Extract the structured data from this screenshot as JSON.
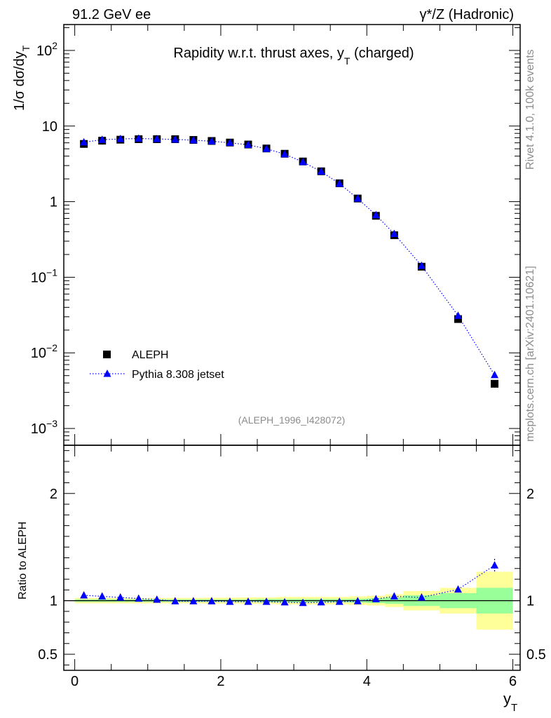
{
  "header": {
    "left": "91.2 GeV ee",
    "right": "γ*/Z (Hadronic)"
  },
  "side": {
    "rivet": "Rivet 4.1.0,  100k events",
    "mcplots": "mcplots.cern.ch [arXiv:2401.10621]"
  },
  "colors": {
    "data": "#000000",
    "mc": "#0000ff",
    "band_inner": "#99ff99",
    "band_outer": "#ffff99"
  },
  "chart_data": [
    {
      "type": "scatter",
      "title": "Rapidity w.r.t. thrust axes, y_T (charged)",
      "title_main": "Rapidity w.r.t. thrust axes, y",
      "title_sub": "T",
      "title_tail": " (charged)",
      "ylabel": "1/σ  dσ/dy_T",
      "ylabel_main": "1/σ  dσ/dy",
      "ylabel_sub": "T",
      "yscale": "log",
      "ylim": [
        0.0006,
        220
      ],
      "xlim": [
        -0.15,
        6.1
      ],
      "watermark": "(ALEPH_1996_I428072)",
      "yticks": [
        {
          "v": 100,
          "base": "10",
          "exp": "2",
          "plain": null
        },
        {
          "v": 10,
          "base": null,
          "exp": null,
          "plain": "10"
        },
        {
          "v": 1,
          "base": null,
          "exp": null,
          "plain": "1"
        },
        {
          "v": 0.1,
          "base": "10",
          "exp": "−1",
          "plain": null
        },
        {
          "v": 0.01,
          "base": "10",
          "exp": "−2",
          "plain": null
        },
        {
          "v": 0.001,
          "base": "10",
          "exp": "−3",
          "plain": null
        }
      ],
      "legend": {
        "position": "lower-left",
        "entries": [
          "ALEPH",
          "Pythia 8.308 jetset"
        ]
      },
      "x": [
        0.125,
        0.375,
        0.625,
        0.875,
        1.125,
        1.375,
        1.625,
        1.875,
        2.125,
        2.375,
        2.625,
        2.875,
        3.125,
        3.375,
        3.625,
        3.875,
        4.125,
        4.375,
        4.75,
        5.25,
        5.75
      ],
      "series": [
        {
          "name": "ALEPH",
          "marker": "square",
          "values": [
            5.8,
            6.4,
            6.6,
            6.7,
            6.7,
            6.7,
            6.55,
            6.35,
            6.05,
            5.7,
            5.05,
            4.3,
            3.4,
            2.52,
            1.75,
            1.1,
            0.65,
            0.36,
            0.138,
            0.028,
            0.0039
          ]
        },
        {
          "name": "Pythia 8.308 jetset",
          "marker": "triangle",
          "line": "dotted",
          "values": [
            6.1,
            6.6,
            6.75,
            6.85,
            6.75,
            6.65,
            6.5,
            6.3,
            6.0,
            5.65,
            5.0,
            4.25,
            3.35,
            2.5,
            1.73,
            1.1,
            0.665,
            0.375,
            0.142,
            0.031,
            0.0051
          ]
        }
      ]
    },
    {
      "type": "scatter",
      "ylabel": "Ratio to ALEPH",
      "xlabel": "y_T",
      "xlabel_main": "y",
      "xlabel_sub": "T",
      "xlim": [
        -0.15,
        6.1
      ],
      "ylim": [
        0.35,
        2.45
      ],
      "xticks": [
        0,
        2,
        4,
        6
      ],
      "yticks": [
        0.5,
        1,
        2
      ],
      "ytick_labels": [
        "0.5",
        "1",
        "2"
      ],
      "bin_edges": [
        0,
        0.25,
        0.5,
        0.75,
        1.0,
        1.25,
        1.5,
        1.75,
        2.0,
        2.25,
        2.5,
        2.75,
        3.0,
        3.25,
        3.5,
        3.75,
        4.0,
        4.25,
        4.5,
        5.0,
        5.5,
        6.0
      ],
      "band_inner": [
        0.012,
        0.012,
        0.012,
        0.012,
        0.012,
        0.012,
        0.012,
        0.012,
        0.012,
        0.012,
        0.015,
        0.015,
        0.015,
        0.015,
        0.015,
        0.018,
        0.022,
        0.03,
        0.05,
        0.07,
        0.12
      ],
      "band_outer": [
        0.025,
        0.025,
        0.025,
        0.025,
        0.025,
        0.025,
        0.025,
        0.028,
        0.028,
        0.03,
        0.03,
        0.035,
        0.035,
        0.035,
        0.035,
        0.04,
        0.045,
        0.06,
        0.09,
        0.12,
        0.27
      ],
      "x": [
        0.125,
        0.375,
        0.625,
        0.875,
        1.125,
        1.375,
        1.625,
        1.875,
        2.125,
        2.375,
        2.625,
        2.875,
        3.125,
        3.375,
        3.625,
        3.875,
        4.125,
        4.375,
        4.75,
        5.25,
        5.75
      ],
      "series": [
        {
          "name": "Pythia 8.308 jetset",
          "values": [
            1.05,
            1.04,
            1.03,
            1.02,
            1.01,
            0.995,
            0.995,
            0.995,
            0.99,
            0.99,
            0.99,
            0.985,
            0.98,
            0.985,
            0.99,
            0.995,
            1.015,
            1.04,
            1.03,
            1.105,
            1.33
          ],
          "err": [
            0.004,
            0.004,
            0.004,
            0.004,
            0.004,
            0.004,
            0.004,
            0.004,
            0.004,
            0.004,
            0.004,
            0.004,
            0.004,
            0.004,
            0.005,
            0.006,
            0.007,
            0.01,
            0.015,
            0.025,
            0.06
          ]
        }
      ]
    }
  ]
}
